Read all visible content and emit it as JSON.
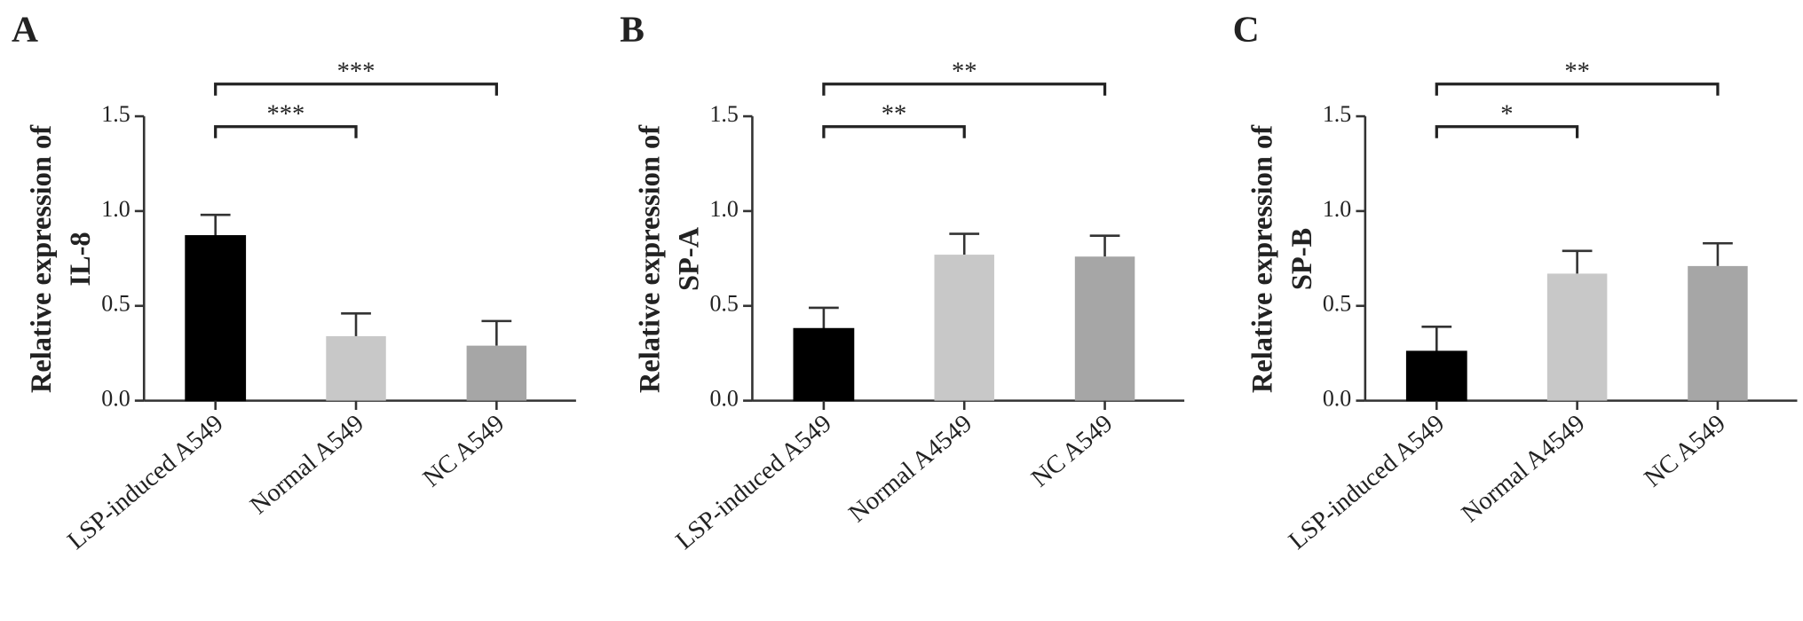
{
  "chart_data": [
    {
      "type": "bar",
      "panel_label": "A",
      "ylabel_lines": [
        "Relative expression of",
        "IL-8"
      ],
      "categories": [
        "LSP-induced A549",
        "Normal A549",
        "NC A549"
      ],
      "values": [
        0.87,
        0.34,
        0.29
      ],
      "errors": [
        0.11,
        0.12,
        0.13
      ],
      "colors": [
        "#000000",
        "#c8c8c8",
        "#a6a6a6"
      ],
      "ylim": [
        0,
        1.5
      ],
      "yticks": [
        {
          "value": 0,
          "label": "0.0"
        },
        {
          "value": 0.5,
          "label": "0.5"
        },
        {
          "value": 1,
          "label": "1.0"
        },
        {
          "value": 1.5,
          "label": "1.5"
        }
      ],
      "annotations": [
        {
          "groups": [
            "LSP-induced A549",
            "Normal A549"
          ],
          "text": "***"
        },
        {
          "groups": [
            "LSP-induced A549",
            "NC A549"
          ],
          "text": "***"
        }
      ]
    },
    {
      "type": "bar",
      "panel_label": "B",
      "ylabel_lines": [
        "Relative expression of",
        "SP-A"
      ],
      "categories": [
        "LSP-induced A549",
        "Normal A4549",
        "NC A549"
      ],
      "values": [
        0.38,
        0.77,
        0.76
      ],
      "errors": [
        0.11,
        0.11,
        0.11
      ],
      "colors": [
        "#000000",
        "#c8c8c8",
        "#a6a6a6"
      ],
      "ylim": [
        0,
        1.5
      ],
      "yticks": [
        {
          "value": 0,
          "label": "0.0"
        },
        {
          "value": 0.5,
          "label": "0.5"
        },
        {
          "value": 1,
          "label": "1.0"
        },
        {
          "value": 1.5,
          "label": "1.5"
        }
      ],
      "annotations": [
        {
          "groups": [
            "LSP-induced A549",
            "Normal A4549"
          ],
          "text": "**"
        },
        {
          "groups": [
            "LSP-induced A549",
            "NC A549"
          ],
          "text": "**"
        }
      ]
    },
    {
      "type": "bar",
      "panel_label": "C",
      "ylabel_lines": [
        "Relative expression of",
        "SP-B"
      ],
      "categories": [
        "LSP-induced A549",
        "Normal A4549",
        "NC A549"
      ],
      "values": [
        0.26,
        0.67,
        0.71
      ],
      "errors": [
        0.13,
        0.12,
        0.12
      ],
      "colors": [
        "#000000",
        "#c8c8c8",
        "#a6a6a6"
      ],
      "ylim": [
        0,
        1.5
      ],
      "yticks": [
        {
          "value": 0,
          "label": "0.0"
        },
        {
          "value": 0.5,
          "label": "0.5"
        },
        {
          "value": 1,
          "label": "1.0"
        },
        {
          "value": 1.5,
          "label": "1.5"
        }
      ],
      "annotations": [
        {
          "groups": [
            "LSP-induced A549",
            "Normal A4549"
          ],
          "text": "*"
        },
        {
          "groups": [
            "LSP-induced A549",
            "NC A549"
          ],
          "text": "**"
        }
      ]
    }
  ]
}
